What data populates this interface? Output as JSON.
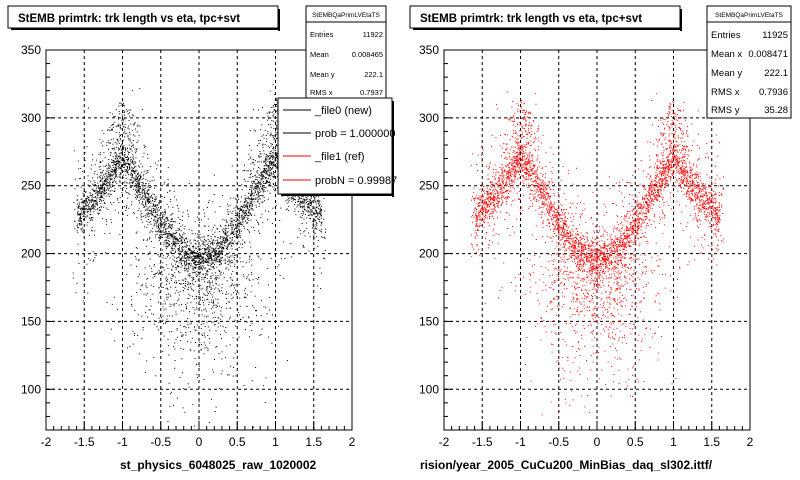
{
  "chart_data": [
    {
      "type": "scatter",
      "title": "StEMB primtrk: trk length vs eta, tpc+svt",
      "xlabel": "st_physics_6048025_raw_1020002",
      "ylabel": "",
      "xlim": [
        -2,
        2
      ],
      "ylim": [
        70,
        350
      ],
      "x_ticks": [
        "-2",
        "-1.5",
        "-1",
        "-0.5",
        "0",
        "0.5",
        "1",
        "1.5",
        "2"
      ],
      "y_ticks": [
        "100",
        "150",
        "200",
        "250",
        "300",
        "350"
      ],
      "grid": true,
      "marker_color": "#000000",
      "stats_box": {
        "name": "StEMBQaPrimLVEtaTS",
        "rows": [
          {
            "label": "Entries",
            "value": "11922"
          },
          {
            "label": "Mean",
            "value": "0.008465"
          },
          {
            "label": "Mean y",
            "value": "222.1"
          },
          {
            "label": "RMS x",
            "value": "0.7937"
          }
        ]
      },
      "legend": {
        "placement": "top-right",
        "entries": [
          {
            "label": "_file0 (new)",
            "color": "#000000"
          },
          {
            "label": "prob = 1.000000",
            "color": "#000000"
          },
          {
            "label": "_file1 (ref)",
            "color": "#ff0000"
          },
          {
            "label": "probN = 0.99987",
            "color": "#ff0000"
          }
        ]
      },
      "band": {
        "knots_x": [
          -1.6,
          -1.3,
          -1.0,
          -0.75,
          -0.5,
          -0.25,
          0.0,
          0.25,
          0.5,
          0.75,
          1.0,
          1.3,
          1.6
        ],
        "knots_y": [
          228,
          245,
          270,
          248,
          222,
          204,
          195,
          204,
          222,
          248,
          270,
          245,
          228
        ]
      }
    },
    {
      "type": "scatter",
      "title": "StEMB primtrk: trk length vs eta, tpc+svt",
      "xlabel": "rision/year_2005_CuCu200_MinBias_daq_sl302.ittf/",
      "ylabel": "",
      "xlim": [
        -2,
        2
      ],
      "ylim": [
        70,
        350
      ],
      "x_ticks": [
        "-2",
        "-1.5",
        "-1",
        "-0.5",
        "0",
        "0.5",
        "1",
        "1.5",
        "2"
      ],
      "y_ticks": [
        "100",
        "150",
        "200",
        "250",
        "300",
        "350"
      ],
      "grid": true,
      "marker_color": "#ff0000",
      "stats_box": {
        "name": "StEMBQaPrimLVEtaTS",
        "rows": [
          {
            "label": "Entries",
            "value": "11925"
          },
          {
            "label": "Mean x",
            "value": "0.008471"
          },
          {
            "label": "Mean y",
            "value": "222.1"
          },
          {
            "label": "RMS x",
            "value": "0.7936"
          },
          {
            "label": "RMS y",
            "value": "35.28"
          }
        ]
      },
      "band": {
        "knots_x": [
          -1.6,
          -1.3,
          -1.0,
          -0.75,
          -0.5,
          -0.25,
          0.0,
          0.25,
          0.5,
          0.75,
          1.0,
          1.3,
          1.6
        ],
        "knots_y": [
          228,
          245,
          270,
          248,
          222,
          204,
          195,
          204,
          222,
          248,
          270,
          245,
          228
        ]
      }
    }
  ]
}
